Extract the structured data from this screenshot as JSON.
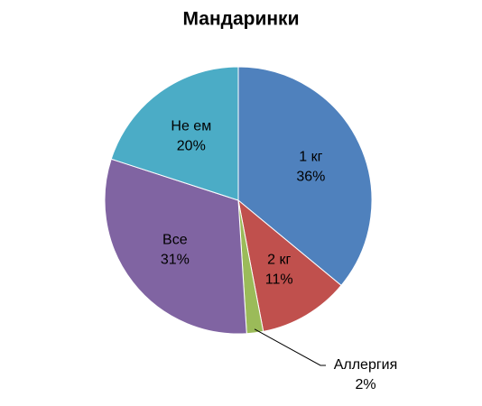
{
  "chart_data": {
    "type": "pie",
    "title": "Мандаринки",
    "categories": [
      "1 кг",
      "2 кг",
      "Аллергия",
      "Все",
      "Не ем"
    ],
    "values": [
      36,
      11,
      2,
      31,
      20
    ],
    "value_labels": [
      "36%",
      "11%",
      "2%",
      "31%",
      "20%"
    ],
    "colors": [
      "#4f81bd",
      "#c0504d",
      "#9bbb59",
      "#8064a2",
      "#4bacc6"
    ]
  }
}
